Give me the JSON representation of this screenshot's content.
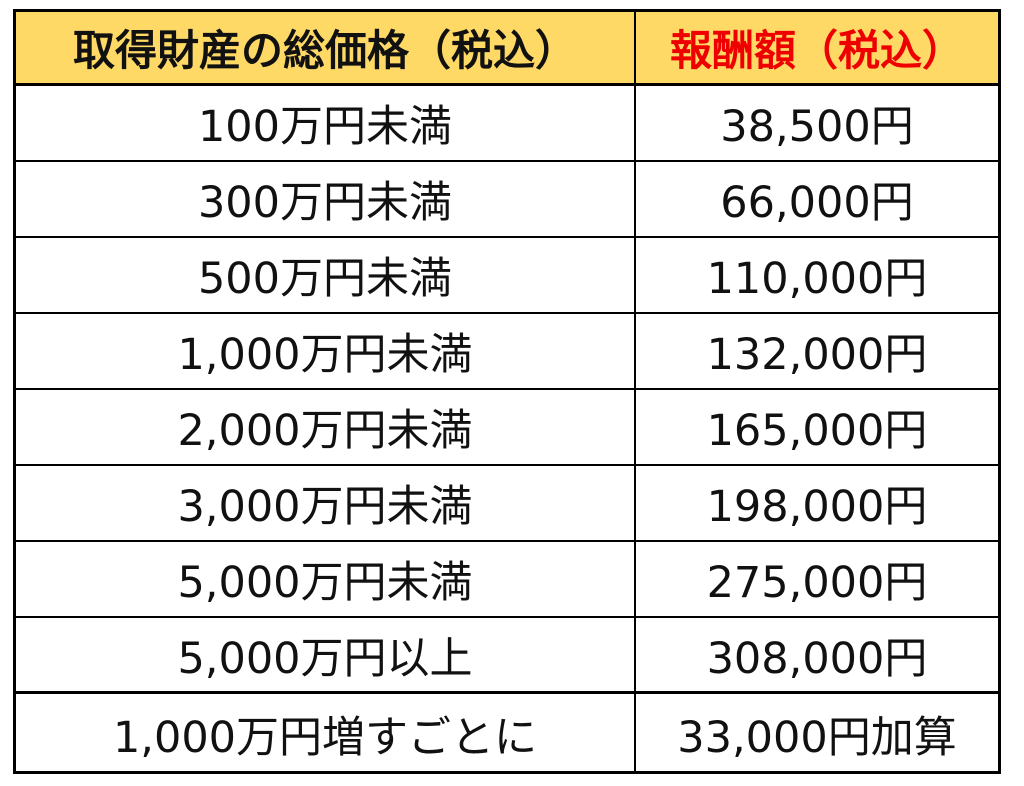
{
  "colors": {
    "header_bg": "#ffd966",
    "fee_header_text": "#ee0000",
    "border": "#000000"
  },
  "table": {
    "headers": {
      "price": "取得財産の総価格（税込）",
      "fee": "報酬額（税込）"
    },
    "rows": [
      {
        "price": "100万円未満",
        "fee": "38,500円"
      },
      {
        "price": "300万円未満",
        "fee": "66,000円"
      },
      {
        "price": "500万円未満",
        "fee": "110,000円"
      },
      {
        "price": "1,000万円未満",
        "fee": "132,000円"
      },
      {
        "price": "2,000万円未満",
        "fee": "165,000円"
      },
      {
        "price": "3,000万円未満",
        "fee": "198,000円"
      },
      {
        "price": "5,000万円未満",
        "fee": "275,000円"
      },
      {
        "price": "5,000万円以上",
        "fee": "308,000円"
      },
      {
        "price": "1,000万円増すごとに",
        "fee": "33,000円加算"
      }
    ]
  }
}
